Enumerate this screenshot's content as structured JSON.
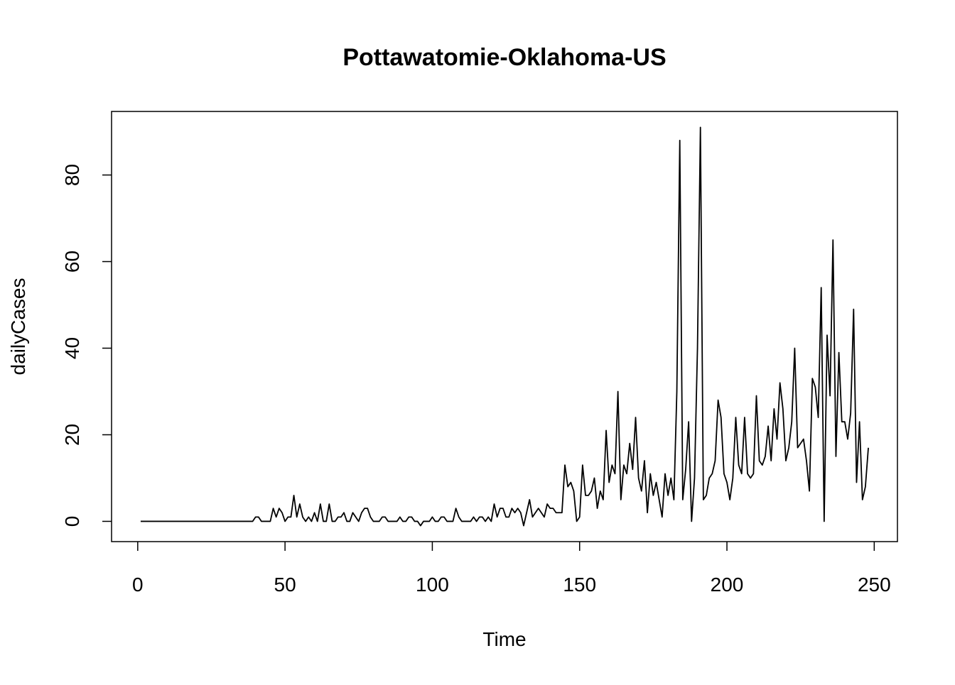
{
  "chart_data": {
    "type": "line",
    "title": "Pottawatomie-Oklahoma-US",
    "x_label": "Time",
    "y_label": "dailyCases",
    "x": [
      1,
      2,
      3,
      4,
      5,
      6,
      7,
      8,
      9,
      10,
      11,
      12,
      13,
      14,
      15,
      16,
      17,
      18,
      19,
      20,
      21,
      22,
      23,
      24,
      25,
      26,
      27,
      28,
      29,
      30,
      31,
      32,
      33,
      34,
      35,
      36,
      37,
      38,
      39,
      40,
      41,
      42,
      43,
      44,
      45,
      46,
      47,
      48,
      49,
      50,
      51,
      52,
      53,
      54,
      55,
      56,
      57,
      58,
      59,
      60,
      61,
      62,
      63,
      64,
      65,
      66,
      67,
      68,
      69,
      70,
      71,
      72,
      73,
      74,
      75,
      76,
      77,
      78,
      79,
      80,
      81,
      82,
      83,
      84,
      85,
      86,
      87,
      88,
      89,
      90,
      91,
      92,
      93,
      94,
      95,
      96,
      97,
      98,
      99,
      100,
      101,
      102,
      103,
      104,
      105,
      106,
      107,
      108,
      109,
      110,
      111,
      112,
      113,
      114,
      115,
      116,
      117,
      118,
      119,
      120,
      121,
      122,
      123,
      124,
      125,
      126,
      127,
      128,
      129,
      130,
      131,
      132,
      133,
      134,
      135,
      136,
      137,
      138,
      139,
      140,
      141,
      142,
      143,
      144,
      145,
      146,
      147,
      148,
      149,
      150,
      151,
      152,
      153,
      154,
      155,
      156,
      157,
      158,
      159,
      160,
      161,
      162,
      163,
      164,
      165,
      166,
      167,
      168,
      169,
      170,
      171,
      172,
      173,
      174,
      175,
      176,
      177,
      178,
      179,
      180,
      181,
      182,
      183,
      184,
      185,
      186,
      187,
      188,
      189,
      190,
      191,
      192,
      193,
      194,
      195,
      196,
      197,
      198,
      199,
      200,
      201,
      202,
      203,
      204,
      205,
      206,
      207,
      208,
      209,
      210,
      211,
      212,
      213,
      214,
      215,
      216,
      217,
      218,
      219,
      220,
      221,
      222,
      223,
      224,
      225,
      226,
      227,
      228,
      229,
      230,
      231,
      232,
      233,
      234,
      235,
      236,
      237,
      238,
      239,
      240,
      241,
      242,
      243,
      244,
      245,
      246,
      247,
      248
    ],
    "series": [
      {
        "name": "dailyCases",
        "color": "#000000",
        "values": [
          0,
          0,
          0,
          0,
          0,
          0,
          0,
          0,
          0,
          0,
          0,
          0,
          0,
          0,
          0,
          0,
          0,
          0,
          0,
          0,
          0,
          0,
          0,
          0,
          0,
          0,
          0,
          0,
          0,
          0,
          0,
          0,
          0,
          0,
          0,
          0,
          0,
          0,
          0,
          1,
          1,
          0,
          0,
          0,
          0,
          3,
          1,
          3,
          2,
          0,
          1,
          1,
          6,
          1,
          4,
          1,
          0,
          1,
          0,
          2,
          0,
          4,
          0,
          0,
          4,
          0,
          0,
          1,
          1,
          2,
          0,
          0,
          2,
          1,
          0,
          2,
          3,
          3,
          1,
          0,
          0,
          0,
          1,
          1,
          0,
          0,
          0,
          0,
          1,
          0,
          0,
          1,
          1,
          0,
          0,
          -1,
          0,
          0,
          0,
          1,
          0,
          0,
          1,
          1,
          0,
          0,
          0,
          3,
          1,
          0,
          0,
          0,
          0,
          1,
          0,
          1,
          1,
          0,
          1,
          0,
          4,
          1,
          3,
          3,
          1,
          1,
          3,
          2,
          3,
          2,
          -1,
          2,
          5,
          1,
          2,
          3,
          2,
          1,
          4,
          3,
          3,
          2,
          2,
          2,
          13,
          8,
          9,
          7,
          0,
          1,
          13,
          6,
          6,
          7,
          10,
          3,
          7,
          5,
          21,
          9,
          13,
          11,
          30,
          5,
          13,
          11,
          18,
          12,
          24,
          10,
          7,
          14,
          2,
          11,
          6,
          9,
          5,
          1,
          11,
          6,
          10,
          5,
          30,
          88,
          5,
          12,
          23,
          0,
          10,
          40,
          91,
          5,
          6,
          10,
          11,
          14,
          28,
          24,
          11,
          9,
          5,
          10,
          24,
          13,
          11,
          24,
          11,
          10,
          11,
          29,
          14,
          13,
          15,
          22,
          14,
          26,
          19,
          32,
          26,
          14,
          17,
          23,
          40,
          17,
          18,
          19,
          14,
          7,
          33,
          31,
          24,
          54,
          0,
          43,
          29,
          65,
          15,
          39,
          23,
          23,
          19,
          25,
          49,
          9,
          23,
          5,
          8,
          17
        ]
      }
    ],
    "xlim": [
      -8.88,
      257.88
    ],
    "ylim": [
      -4.68,
      94.68
    ],
    "xticks": [
      0,
      50,
      100,
      150,
      200,
      250
    ],
    "yticks": [
      0,
      20,
      40,
      60,
      80
    ],
    "grid": false
  }
}
